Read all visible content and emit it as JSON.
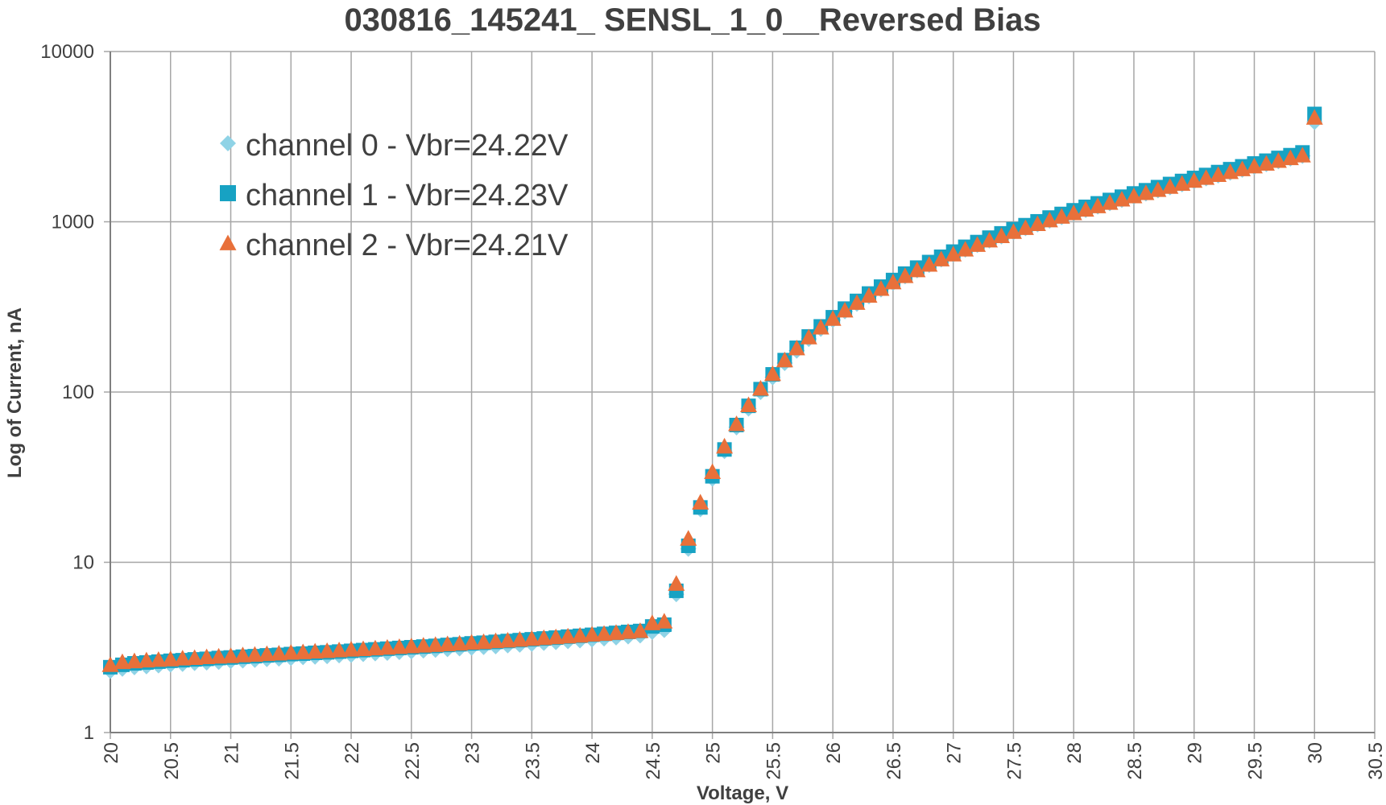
{
  "chart_data": {
    "type": "scatter",
    "title": "030816_145241_ SENSL_1_0__Reversed Bias",
    "xlabel": "Voltage, V",
    "ylabel": "Log of Current, nA",
    "xlim": [
      20,
      30.5
    ],
    "ylim": [
      1,
      10000
    ],
    "yscale": "log",
    "grid": true,
    "legend_position": "top-left",
    "x_ticks": [
      "20",
      "20.5",
      "21",
      "21.5",
      "22",
      "22.5",
      "23",
      "23.5",
      "24",
      "24.5",
      "25",
      "25.5",
      "26",
      "26.5",
      "27",
      "27.5",
      "28",
      "28.5",
      "29",
      "29.5",
      "30",
      "30.5"
    ],
    "y_ticks": [
      "1",
      "10",
      "100",
      "1000",
      "10000"
    ],
    "x": [
      20.0,
      20.1,
      20.2,
      20.3,
      20.4,
      20.5,
      20.6,
      20.7,
      20.8,
      20.9,
      21.0,
      21.1,
      21.2,
      21.3,
      21.4,
      21.5,
      21.6,
      21.7,
      21.8,
      21.9,
      22.0,
      22.1,
      22.2,
      22.3,
      22.4,
      22.5,
      22.6,
      22.7,
      22.8,
      22.9,
      23.0,
      23.1,
      23.2,
      23.3,
      23.4,
      23.5,
      23.6,
      23.7,
      23.8,
      23.9,
      24.0,
      24.1,
      24.2,
      24.3,
      24.4,
      24.5,
      24.6,
      24.7,
      24.8,
      24.9,
      25.0,
      25.1,
      25.2,
      25.3,
      25.4,
      25.5,
      25.6,
      25.7,
      25.8,
      25.9,
      26.0,
      26.1,
      26.2,
      26.3,
      26.4,
      26.5,
      26.6,
      26.7,
      26.8,
      26.9,
      27.0,
      27.1,
      27.2,
      27.3,
      27.4,
      27.5,
      27.6,
      27.7,
      27.8,
      27.9,
      28.0,
      28.1,
      28.2,
      28.3,
      28.4,
      28.5,
      28.6,
      28.7,
      28.8,
      28.9,
      29.0,
      29.1,
      29.2,
      29.3,
      29.4,
      29.5,
      29.6,
      29.7,
      29.8,
      29.9,
      30.0
    ],
    "series": [
      {
        "name": "channel 0 - Vbr=24.22V",
        "marker": "diamond",
        "color": "#8fd3e6",
        "values": [
          2.3,
          2.37,
          2.42,
          2.45,
          2.48,
          2.51,
          2.53,
          2.56,
          2.58,
          2.6,
          2.63,
          2.65,
          2.67,
          2.7,
          2.72,
          2.74,
          2.77,
          2.79,
          2.81,
          2.84,
          2.86,
          2.89,
          2.92,
          2.94,
          2.97,
          3.0,
          3.03,
          3.06,
          3.09,
          3.12,
          3.15,
          3.18,
          3.21,
          3.25,
          3.28,
          3.32,
          3.36,
          3.4,
          3.44,
          3.48,
          3.52,
          3.57,
          3.62,
          3.67,
          3.72,
          3.9,
          4.0,
          6.5,
          12.0,
          20.5,
          31.0,
          45.0,
          62.0,
          80.0,
          100.0,
          122.0,
          148.0,
          175.0,
          205.0,
          235.0,
          265.0,
          298.0,
          330.0,
          365.0,
          400.0,
          438.0,
          478.0,
          518.0,
          558.0,
          600.0,
          642.0,
          686.0,
          730.0,
          775.0,
          820.0,
          868.0,
          916.0,
          965.0,
          1015.0,
          1065.0,
          1118.0,
          1172.0,
          1228.0,
          1285.0,
          1343.0,
          1403.0,
          1465.0,
          1528.0,
          1593.0,
          1660.0,
          1728.0,
          1798.0,
          1870.0,
          1944.0,
          2020.0,
          2100.0,
          2180.0,
          2265.0,
          2350.0,
          2440.0,
          3850.0
        ]
      },
      {
        "name": "channel 1 - Vbr=24.23V",
        "marker": "square",
        "color": "#17a2c3",
        "values": [
          2.42,
          2.5,
          2.55,
          2.58,
          2.61,
          2.64,
          2.66,
          2.69,
          2.71,
          2.74,
          2.76,
          2.79,
          2.81,
          2.84,
          2.86,
          2.89,
          2.91,
          2.94,
          2.96,
          2.99,
          3.02,
          3.05,
          3.08,
          3.11,
          3.14,
          3.17,
          3.2,
          3.23,
          3.27,
          3.3,
          3.34,
          3.37,
          3.41,
          3.45,
          3.49,
          3.53,
          3.57,
          3.61,
          3.66,
          3.7,
          3.75,
          3.8,
          3.85,
          3.9,
          3.95,
          4.2,
          4.3,
          6.8,
          12.5,
          21.0,
          32.0,
          46.0,
          64.0,
          83.0,
          104.0,
          127.0,
          154.0,
          182.0,
          212.0,
          243.0,
          275.0,
          309.0,
          343.0,
          379.0,
          416.0,
          455.0,
          496.0,
          538.0,
          580.0,
          623.0,
          668.0,
          713.0,
          760.0,
          807.0,
          855.0,
          905.0,
          955.0,
          1006.0,
          1059.0,
          1112.0,
          1168.0,
          1224.0,
          1283.0,
          1343.0,
          1404.0,
          1467.0,
          1532.0,
          1598.0,
          1667.0,
          1737.0,
          1809.0,
          1883.0,
          1959.0,
          2037.0,
          2117.0,
          2200.0,
          2285.0,
          2372.0,
          2462.0,
          2555.0,
          4300.0
        ]
      },
      {
        "name": "channel 2 - Vbr=24.21V",
        "marker": "triangle",
        "color": "#e8703a",
        "values": [
          2.5,
          2.6,
          2.63,
          2.66,
          2.68,
          2.7,
          2.73,
          2.75,
          2.78,
          2.8,
          2.82,
          2.85,
          2.87,
          2.9,
          2.92,
          2.95,
          2.97,
          3.0,
          3.02,
          3.05,
          3.08,
          3.1,
          3.13,
          3.16,
          3.19,
          3.22,
          3.25,
          3.28,
          3.31,
          3.34,
          3.38,
          3.41,
          3.45,
          3.48,
          3.52,
          3.56,
          3.6,
          3.64,
          3.68,
          3.72,
          3.77,
          3.81,
          3.86,
          3.91,
          3.96,
          4.4,
          4.5,
          7.5,
          13.8,
          22.5,
          34.0,
          48.0,
          65.0,
          84.0,
          105.0,
          128.0,
          154.0,
          181.0,
          210.0,
          240.0,
          270.0,
          302.0,
          335.0,
          369.0,
          405.0,
          442.0,
          481.0,
          521.0,
          561.0,
          603.0,
          645.0,
          689.0,
          734.0,
          779.0,
          826.0,
          874.0,
          922.0,
          972.0,
          1023.0,
          1074.0,
          1127.0,
          1182.0,
          1238.0,
          1296.0,
          1355.0,
          1416.0,
          1478.0,
          1542.0,
          1608.0,
          1676.0,
          1745.0,
          1816.0,
          1889.0,
          1964.0,
          2041.0,
          2120.0,
          2201.0,
          2285.0,
          2371.0,
          2460.0,
          4100.0
        ]
      }
    ]
  }
}
